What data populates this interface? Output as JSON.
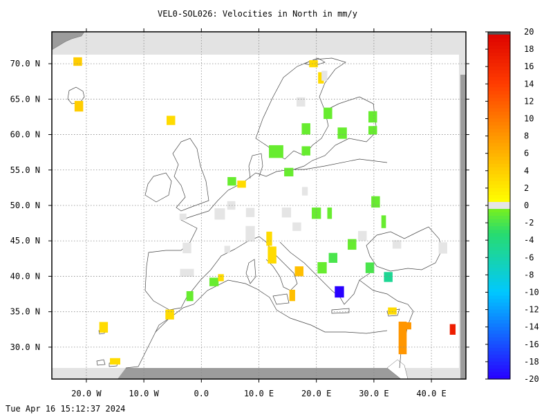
{
  "title": "VEL0-SOL026: Velocities in North in mm/y",
  "timestamp": "Tue Apr 16 15:12:37 2024",
  "map": {
    "lon_range": [
      -26,
      46
    ],
    "lat_range": [
      25.5,
      74.5
    ],
    "lon_ticks": [
      {
        "value": -20,
        "label": "20.0 W"
      },
      {
        "value": -10,
        "label": "10.0 W"
      },
      {
        "value": 0,
        "label": "0.0"
      },
      {
        "value": 10,
        "label": "10.0 E"
      },
      {
        "value": 20,
        "label": "20.0 E"
      },
      {
        "value": 30,
        "label": "30.0 E"
      },
      {
        "value": 40,
        "label": "40.0 E"
      }
    ],
    "lat_ticks": [
      {
        "value": 30,
        "label": "30.0 N"
      },
      {
        "value": 35,
        "label": "35.0 N"
      },
      {
        "value": 40,
        "label": "40.0 N"
      },
      {
        "value": 45,
        "label": "45.0 N"
      },
      {
        "value": 50,
        "label": "50.0 N"
      },
      {
        "value": 55,
        "label": "55.0 N"
      },
      {
        "value": 60,
        "label": "60.0 N"
      },
      {
        "value": 65,
        "label": "65.0 N"
      },
      {
        "value": 70,
        "label": "70.0 N"
      }
    ],
    "grid": true,
    "cells": [
      {
        "lon": -21.5,
        "lat": 70.3,
        "w": 1.5,
        "h": 1.2,
        "v": 4
      },
      {
        "lon": -21.3,
        "lat": 64.0,
        "w": 1.5,
        "h": 1.5,
        "v": 4
      },
      {
        "lon": -5.3,
        "lat": 62.0,
        "w": 1.5,
        "h": 1.3,
        "v": 3
      },
      {
        "lon": -17.0,
        "lat": 32.8,
        "w": 1.5,
        "h": 1.5,
        "v": 3
      },
      {
        "lon": -15.0,
        "lat": 28.0,
        "w": 1.8,
        "h": 0.9,
        "v": 3
      },
      {
        "lon": -5.5,
        "lat": 34.6,
        "w": 1.5,
        "h": 1.4,
        "v": 3
      },
      {
        "lon": -2.0,
        "lat": 37.2,
        "w": 1.2,
        "h": 1.4,
        "v": -1
      },
      {
        "lon": 2.2,
        "lat": 39.2,
        "w": 1.6,
        "h": 1.2,
        "v": -1
      },
      {
        "lon": 3.4,
        "lat": 39.8,
        "w": 1.0,
        "h": 1.0,
        "v": 3
      },
      {
        "lon": 5.3,
        "lat": 53.4,
        "w": 1.5,
        "h": 1.2,
        "v": -1
      },
      {
        "lon": 7.0,
        "lat": 53.0,
        "w": 1.5,
        "h": 1.0,
        "v": 3
      },
      {
        "lon": 13.0,
        "lat": 57.6,
        "w": 2.5,
        "h": 1.8,
        "v": -1
      },
      {
        "lon": 15.2,
        "lat": 54.7,
        "w": 1.6,
        "h": 1.2,
        "v": -1
      },
      {
        "lon": 18.2,
        "lat": 57.7,
        "w": 1.5,
        "h": 1.3,
        "v": -1
      },
      {
        "lon": 18.2,
        "lat": 60.8,
        "w": 1.5,
        "h": 1.6,
        "v": -1
      },
      {
        "lon": 19.5,
        "lat": 70.0,
        "w": 1.5,
        "h": 1.0,
        "v": 3
      },
      {
        "lon": 20.8,
        "lat": 68.0,
        "w": 1.0,
        "h": 1.6,
        "v": 3
      },
      {
        "lon": 22.0,
        "lat": 63.0,
        "w": 1.5,
        "h": 1.6,
        "v": -1
      },
      {
        "lon": 24.5,
        "lat": 60.2,
        "w": 1.6,
        "h": 1.6,
        "v": -1
      },
      {
        "lon": 29.8,
        "lat": 62.5,
        "w": 1.5,
        "h": 1.6,
        "v": -1
      },
      {
        "lon": 29.8,
        "lat": 60.6,
        "w": 1.5,
        "h": 1.2,
        "v": -1
      },
      {
        "lon": 20.0,
        "lat": 48.9,
        "w": 1.6,
        "h": 1.6,
        "v": -1
      },
      {
        "lon": 22.3,
        "lat": 48.9,
        "w": 0.8,
        "h": 1.6,
        "v": -1
      },
      {
        "lon": 30.3,
        "lat": 50.5,
        "w": 1.5,
        "h": 1.6,
        "v": -1
      },
      {
        "lon": 31.7,
        "lat": 47.7,
        "w": 0.8,
        "h": 1.8,
        "v": -1
      },
      {
        "lon": 11.8,
        "lat": 45.3,
        "w": 1.0,
        "h": 2.0,
        "v": 3
      },
      {
        "lon": 12.3,
        "lat": 43.0,
        "w": 1.5,
        "h": 2.4,
        "v": 3
      },
      {
        "lon": 12.6,
        "lat": 42.6,
        "w": 0.8,
        "h": 1.2,
        "v": 3
      },
      {
        "lon": 17.0,
        "lat": 40.7,
        "w": 1.5,
        "h": 1.4,
        "v": 5
      },
      {
        "lon": 15.8,
        "lat": 37.3,
        "w": 1.0,
        "h": 1.6,
        "v": 5
      },
      {
        "lon": 21.0,
        "lat": 41.2,
        "w": 1.6,
        "h": 1.6,
        "v": -1
      },
      {
        "lon": 22.9,
        "lat": 42.6,
        "w": 1.5,
        "h": 1.4,
        "v": -2
      },
      {
        "lon": 26.2,
        "lat": 44.5,
        "w": 1.5,
        "h": 1.5,
        "v": -1
      },
      {
        "lon": 29.3,
        "lat": 41.2,
        "w": 1.5,
        "h": 1.5,
        "v": -2
      },
      {
        "lon": 32.5,
        "lat": 39.9,
        "w": 1.5,
        "h": 1.4,
        "v": -5
      },
      {
        "lon": 24.0,
        "lat": 37.8,
        "w": 1.6,
        "h": 1.6,
        "v": -20
      },
      {
        "lon": 33.2,
        "lat": 35.1,
        "w": 1.5,
        "h": 1.0,
        "v": 3
      },
      {
        "lon": 35.0,
        "lat": 31.3,
        "w": 1.4,
        "h": 4.6,
        "v": 8
      },
      {
        "lon": 35.8,
        "lat": 33.0,
        "w": 1.4,
        "h": 1.0,
        "v": 8
      },
      {
        "lon": 43.7,
        "lat": 32.5,
        "w": 1.0,
        "h": 1.5,
        "v": 17
      },
      {
        "lon": 17.3,
        "lat": 64.6,
        "w": 1.5,
        "h": 1.3,
        "v": 0
      },
      {
        "lon": 14.8,
        "lat": 49.0,
        "w": 1.6,
        "h": 1.4,
        "v": 0
      },
      {
        "lon": 16.6,
        "lat": 47.0,
        "w": 1.5,
        "h": 1.2,
        "v": 0
      },
      {
        "lon": 3.2,
        "lat": 48.8,
        "w": 1.8,
        "h": 1.6,
        "v": 0
      },
      {
        "lon": 5.2,
        "lat": 50.0,
        "w": 1.4,
        "h": 1.2,
        "v": 0
      },
      {
        "lon": 8.5,
        "lat": 49.0,
        "w": 1.5,
        "h": 1.3,
        "v": 0
      },
      {
        "lon": 8.5,
        "lat": 46.0,
        "w": 1.6,
        "h": 2.2,
        "v": 0
      },
      {
        "lon": -3.2,
        "lat": 48.4,
        "w": 1.2,
        "h": 0.9,
        "v": 0
      },
      {
        "lon": -2.5,
        "lat": 44.0,
        "w": 1.5,
        "h": 1.5,
        "v": 0
      },
      {
        "lon": 4.5,
        "lat": 43.8,
        "w": 1.0,
        "h": 1.0,
        "v": 0
      },
      {
        "lon": -2.5,
        "lat": 40.5,
        "w": 2.4,
        "h": 1.1,
        "v": 0
      },
      {
        "lon": 28.0,
        "lat": 45.7,
        "w": 1.5,
        "h": 1.4,
        "v": 0
      },
      {
        "lon": 34.0,
        "lat": 44.5,
        "w": 1.5,
        "h": 1.2,
        "v": 0
      },
      {
        "lon": 42.0,
        "lat": 44.0,
        "w": 1.5,
        "h": 1.6,
        "v": 0
      },
      {
        "lon": 18.0,
        "lat": 52.0,
        "w": 1.0,
        "h": 1.2,
        "v": 0
      },
      {
        "lon": 21.4,
        "lat": 68.3,
        "w": 1.0,
        "h": 1.4,
        "v": 0
      }
    ]
  },
  "colorbar": {
    "min": -20,
    "max": 20,
    "ticks": [
      "20",
      "18",
      "16",
      "14",
      "12",
      "10",
      "8",
      "6",
      "4",
      "2",
      "0",
      "-2",
      "-4",
      "-6",
      "-8",
      "-10",
      "-12",
      "-14",
      "-16",
      "-18",
      "-20"
    ]
  }
}
